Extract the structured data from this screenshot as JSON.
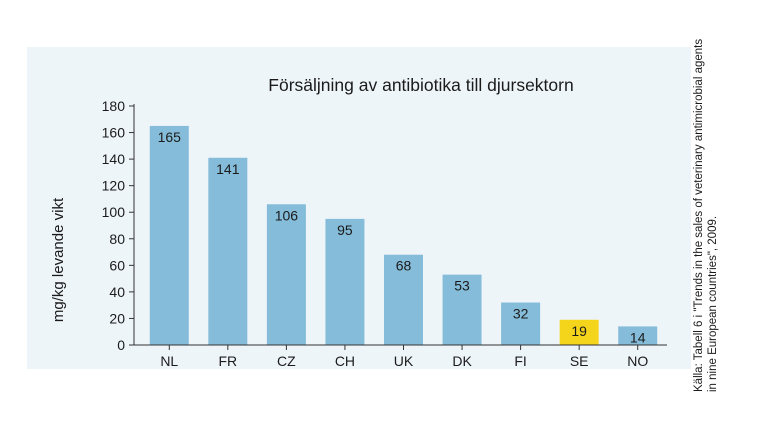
{
  "chart_data": {
    "type": "bar",
    "title": "Försäljning av antibiotika till djursektorn",
    "ylabel": "mg/kg levande vikt",
    "xlabel": "",
    "categories": [
      "NL",
      "FR",
      "CZ",
      "CH",
      "UK",
      "DK",
      "FI",
      "SE",
      "NO"
    ],
    "values": [
      165,
      141,
      106,
      95,
      68,
      53,
      32,
      19,
      14
    ],
    "data_labels": [
      "165",
      "141",
      "106",
      "95",
      "68",
      "53",
      "32",
      "19",
      "14"
    ],
    "ylim": [
      0,
      180
    ],
    "yticks": [
      0,
      20,
      40,
      60,
      80,
      100,
      120,
      140,
      160,
      180
    ],
    "grid": false,
    "legend": "none",
    "bar_color": "#85bcd9",
    "highlight_category": "SE",
    "highlight_color": "#f5d51c"
  },
  "source_note": "Källa: Tabell 6 i \"Trends in the sales of veterinary antimicrobial agents in nine European countries\", 2009."
}
